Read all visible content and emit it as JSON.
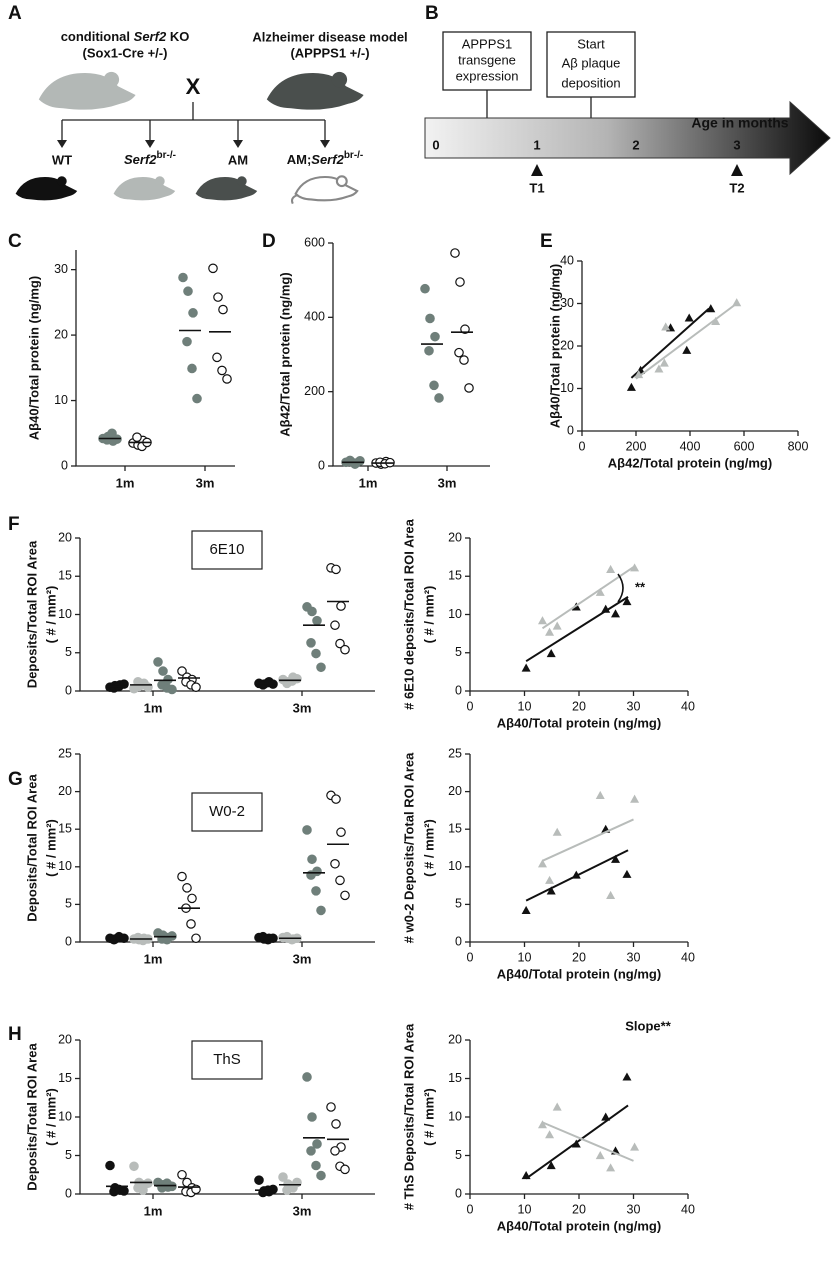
{
  "panel_a": {
    "letter": "A",
    "left_parent": {
      "pre": "conditional",
      "italic": "Serf2",
      "post": "KO",
      "line2": "(Sox1-Cre +/-)"
    },
    "right_parent": {
      "line1": "Alzheimer disease model",
      "line2": "(APPPS1 +/-)"
    },
    "cross": "X",
    "offspring": [
      {
        "text": "WT"
      },
      {
        "italic": "Serf2",
        "sup": "br-/-"
      },
      {
        "text": "AM"
      },
      {
        "text": "AM;",
        "italic": "Serf2",
        "sup": "br-/-"
      }
    ]
  },
  "panel_b": {
    "letter": "B",
    "box1": [
      "APPPS1",
      "transgene",
      "expression"
    ],
    "box2": [
      "Start",
      "Aβ plaque",
      "deposition"
    ],
    "timeline_ticks": [
      "0",
      "1",
      "2",
      "3"
    ],
    "timeline_label": "Age in months",
    "timepoints": [
      "T1",
      "T2"
    ]
  },
  "chart_data": [
    {
      "type": "strip",
      "panel": "C",
      "y_label": "Aβ40/Total protein (ng/mg)",
      "categories": [
        "1m",
        "3m"
      ],
      "ylim": [
        0,
        33
      ],
      "yticks": [
        0,
        10,
        20,
        30
      ],
      "series": [
        {
          "color": "#6f7f7a",
          "marker": "filled",
          "values": [
            [
              4.2,
              4.5,
              3.8,
              4.0,
              5.0,
              4.1
            ],
            [
              28.8,
              26.7,
              23.4,
              19.0,
              14.9,
              10.3
            ]
          ],
          "means": [
            4.2,
            20.7
          ]
        },
        {
          "color": "#111111",
          "marker": "open",
          "values": [
            [
              3.5,
              3.2,
              3.9,
              4.4,
              3.0,
              3.6
            ],
            [
              30.2,
              25.8,
              23.9,
              16.6,
              14.6,
              13.3
            ]
          ],
          "means": [
            3.6,
            20.5
          ]
        }
      ]
    },
    {
      "type": "strip",
      "panel": "D",
      "y_label": "Aβ42/Total protein (ng/mg)",
      "categories": [
        "1m",
        "3m"
      ],
      "ylim": [
        0,
        600
      ],
      "yticks": [
        0,
        200,
        400,
        600
      ],
      "series": [
        {
          "color": "#6f7f7a",
          "marker": "filled",
          "values": [
            [
              10,
              12,
              8,
              15,
              5,
              14
            ],
            [
              477,
              397,
              348,
              310,
              217,
              183
            ]
          ],
          "means": [
            10,
            328
          ]
        },
        {
          "color": "#111111",
          "marker": "open",
          "values": [
            [
              8,
              5,
              12,
              10,
              6,
              9
            ],
            [
              573,
              495,
              368,
              305,
              285,
              210
            ]
          ],
          "means": [
            8,
            360
          ]
        }
      ]
    },
    {
      "type": "scatter",
      "panel": "E",
      "x_label": "Aβ42/Total protein (ng/mg)",
      "y_label": "Aβ40/Total protein (ng/mg)",
      "xlim": [
        0,
        800
      ],
      "xticks": [
        0,
        200,
        400,
        600,
        800
      ],
      "ylim": [
        0,
        40
      ],
      "yticks": [
        0,
        10,
        20,
        30,
        40
      ],
      "series": [
        {
          "color": "#111111",
          "x": [
            183,
            217,
            328,
            397,
            388,
            477
          ],
          "values": [
            10.3,
            14.3,
            24.3,
            26.6,
            19.0,
            28.8
          ],
          "fit": {
            "x": [
              183,
              470
            ],
            "y": [
              12.5,
              28.8
            ]
          }
        },
        {
          "color": "#b8bcba",
          "x": [
            210,
            285,
            305,
            310,
            495,
            573
          ],
          "values": [
            13.3,
            14.6,
            16.0,
            24.5,
            25.8,
            30.2
          ],
          "fit": {
            "x": [
              200,
              573
            ],
            "y": [
              12.3,
              30.0
            ]
          }
        }
      ]
    },
    {
      "type": "strip",
      "panel": "F",
      "box_label": "6E10",
      "y_label": "Deposits/Total ROI Area",
      "y_label2": "( # / mm²)",
      "categories": [
        "1m",
        "3m"
      ],
      "ylim": [
        0,
        20
      ],
      "yticks": [
        0,
        5,
        10,
        15,
        20
      ],
      "series": [
        {
          "color": "#111111",
          "marker": "filled",
          "values": [
            [
              0.5,
              0.7,
              0.8,
              0.4,
              0.6,
              0.9
            ],
            [
              1.0,
              0.9,
              1.2,
              0.8,
              1.1,
              0.9
            ]
          ],
          "means": [
            0.6,
            1.0
          ]
        },
        {
          "color": "#b8bcba",
          "marker": "filled",
          "values": [
            [
              0.3,
              0.6,
              1.0,
              1.2,
              0.8,
              0.5
            ],
            [
              1.5,
              1.2,
              1.8,
              1.0,
              1.3,
              1.6
            ]
          ],
          "means": [
            0.8,
            1.4
          ]
        },
        {
          "color": "#6f7f7a",
          "marker": "filled",
          "values": [
            [
              3.8,
              2.6,
              1.5,
              0.8,
              0.4,
              0.2
            ],
            [
              11.0,
              10.4,
              9.2,
              6.3,
              4.9,
              3.1
            ]
          ],
          "means": [
            1.4,
            8.6
          ]
        },
        {
          "color": "#111111",
          "marker": "open",
          "values": [
            [
              2.6,
              1.8,
              1.5,
              1.2,
              0.8,
              0.5
            ],
            [
              16.1,
              15.9,
              11.1,
              8.6,
              6.2,
              5.4
            ]
          ],
          "means": [
            1.7,
            11.7
          ]
        }
      ]
    },
    {
      "type": "scatter",
      "x_label": "Aβ40/Total protein (ng/mg)",
      "y_label": "# 6E10 deposits/Total ROI Area",
      "y_label2": "( # / mm²)",
      "xlim": [
        0,
        40
      ],
      "xticks": [
        0,
        10,
        20,
        30,
        40
      ],
      "ylim": [
        0,
        20
      ],
      "yticks": [
        0,
        5,
        10,
        15,
        20
      ],
      "annotation": "**",
      "series": [
        {
          "color": "#111111",
          "x": [
            10.3,
            14.9,
            19.5,
            24.9,
            26.7,
            28.8
          ],
          "values": [
            3.0,
            4.9,
            11.0,
            10.7,
            10.1,
            11.7
          ],
          "fit": {
            "x": [
              10.3,
              29
            ],
            "y": [
              3.9,
              12.3
            ]
          }
        },
        {
          "color": "#b8bcba",
          "x": [
            13.3,
            14.6,
            16.0,
            23.9,
            25.8,
            30.2
          ],
          "values": [
            9.2,
            7.7,
            8.5,
            12.9,
            15.9,
            16.1
          ],
          "fit": {
            "x": [
              13.3,
              30
            ],
            "y": [
              8.2,
              16.2
            ]
          }
        }
      ]
    },
    {
      "type": "strip",
      "panel": "G",
      "box_label": "W0-2",
      "y_label": "Deposits/Total ROI Area",
      "y_label2": "( # / mm²)",
      "categories": [
        "1m",
        "3m"
      ],
      "ylim": [
        0,
        25
      ],
      "yticks": [
        0,
        5,
        10,
        15,
        20,
        25
      ],
      "series": [
        {
          "color": "#111111",
          "marker": "filled",
          "values": [
            [
              0.5,
              0.4,
              0.6,
              0.3,
              0.7,
              0.5
            ],
            [
              0.6,
              0.4,
              0.5,
              0.7,
              0.3,
              0.5
            ]
          ],
          "means": [
            0.5,
            0.5
          ]
        },
        {
          "color": "#b8bcba",
          "marker": "filled",
          "values": [
            [
              0.4,
              0.3,
              0.5,
              0.6,
              0.2,
              0.4
            ],
            [
              0.6,
              0.5,
              0.4,
              0.7,
              0.3,
              0.5
            ]
          ],
          "means": [
            0.4,
            0.5
          ]
        },
        {
          "color": "#6f7f7a",
          "marker": "filled",
          "values": [
            [
              1.2,
              0.9,
              0.6,
              0.4,
              0.3,
              0.8
            ],
            [
              14.9,
              11.0,
              9.4,
              8.9,
              6.8,
              4.2
            ]
          ],
          "means": [
            0.7,
            9.2
          ]
        },
        {
          "color": "#111111",
          "marker": "open",
          "values": [
            [
              8.7,
              7.2,
              5.8,
              4.5,
              2.4,
              0.5
            ],
            [
              19.5,
              19.0,
              14.6,
              10.4,
              8.2,
              6.2
            ]
          ],
          "means": [
            4.5,
            13.0
          ]
        }
      ]
    },
    {
      "type": "scatter",
      "x_label": "Aβ40/Total protein (ng/mg)",
      "y_label": "# w0-2 Deposits/Total ROI Area",
      "y_label2": "( # / mm²)",
      "xlim": [
        0,
        40
      ],
      "xticks": [
        0,
        10,
        20,
        30,
        40
      ],
      "ylim": [
        0,
        25
      ],
      "yticks": [
        0,
        5,
        10,
        15,
        20,
        25
      ],
      "series": [
        {
          "color": "#111111",
          "x": [
            10.3,
            14.9,
            19.5,
            24.9,
            26.7,
            28.8
          ],
          "values": [
            4.2,
            6.8,
            8.9,
            15.0,
            11.0,
            9.0
          ],
          "fit": {
            "x": [
              10.3,
              29
            ],
            "y": [
              5.5,
              12.2
            ]
          }
        },
        {
          "color": "#b8bcba",
          "x": [
            13.3,
            14.6,
            16.0,
            23.9,
            25.8,
            30.2
          ],
          "values": [
            10.4,
            8.2,
            14.6,
            19.5,
            6.2,
            19.0
          ],
          "fit": {
            "x": [
              13.3,
              30
            ],
            "y": [
              10.8,
              16.3
            ]
          }
        }
      ]
    },
    {
      "type": "strip",
      "panel": "H",
      "box_label": "ThS",
      "y_label": "Deposits/Total ROI Area",
      "y_label2": "( # / mm²)",
      "categories": [
        "1m",
        "3m"
      ],
      "ylim": [
        0,
        20
      ],
      "yticks": [
        0,
        5,
        10,
        15,
        20
      ],
      "series": [
        {
          "color": "#111111",
          "marker": "filled",
          "values": [
            [
              3.7,
              0.8,
              0.5,
              0.3,
              0.6,
              0.4
            ],
            [
              1.8,
              0.4,
              0.3,
              0.2,
              0.5,
              0.6
            ]
          ],
          "means": [
            1.0,
            0.5
          ]
        },
        {
          "color": "#b8bcba",
          "marker": "filled",
          "values": [
            [
              3.6,
              1.5,
              1.2,
              0.8,
              0.5,
              1.4
            ],
            [
              2.2,
              1.3,
              0.8,
              0.5,
              1.0,
              1.5
            ]
          ],
          "means": [
            1.5,
            1.2
          ]
        },
        {
          "color": "#6f7f7a",
          "marker": "filled",
          "values": [
            [
              1.5,
              1.2,
              0.9,
              0.8,
              1.4,
              1.0
            ],
            [
              15.2,
              10.0,
              6.5,
              5.6,
              3.7,
              2.4
            ]
          ],
          "means": [
            1.1,
            7.3
          ]
        },
        {
          "color": "#111111",
          "marker": "open",
          "values": [
            [
              2.5,
              1.5,
              0.8,
              0.3,
              0.2,
              0.6
            ],
            [
              11.3,
              9.1,
              6.1,
              5.6,
              3.6,
              3.2
            ]
          ],
          "means": [
            0.9,
            7.1
          ]
        }
      ]
    },
    {
      "type": "scatter",
      "x_label": "Aβ40/Total protein (ng/mg)",
      "y_label": "# ThS Deposits/Total ROI Area",
      "y_label2": "( # / mm²)",
      "xlim": [
        0,
        40
      ],
      "xticks": [
        0,
        10,
        20,
        30,
        40
      ],
      "ylim": [
        0,
        20
      ],
      "yticks": [
        0,
        5,
        10,
        15,
        20
      ],
      "annotation": "Slope**",
      "series": [
        {
          "color": "#111111",
          "x": [
            10.3,
            14.9,
            19.5,
            24.9,
            26.7,
            28.8
          ],
          "values": [
            2.4,
            3.7,
            6.5,
            10.0,
            5.6,
            15.2
          ],
          "fit": {
            "x": [
              10.3,
              29
            ],
            "y": [
              2.0,
              11.5
            ]
          }
        },
        {
          "color": "#b8bcba",
          "x": [
            13.3,
            14.6,
            16.0,
            23.9,
            25.8,
            30.2
          ],
          "values": [
            9.0,
            7.7,
            11.3,
            5.0,
            3.4,
            6.1
          ],
          "fit": {
            "x": [
              13.3,
              30
            ],
            "y": [
              9.3,
              4.3
            ]
          }
        }
      ]
    }
  ]
}
